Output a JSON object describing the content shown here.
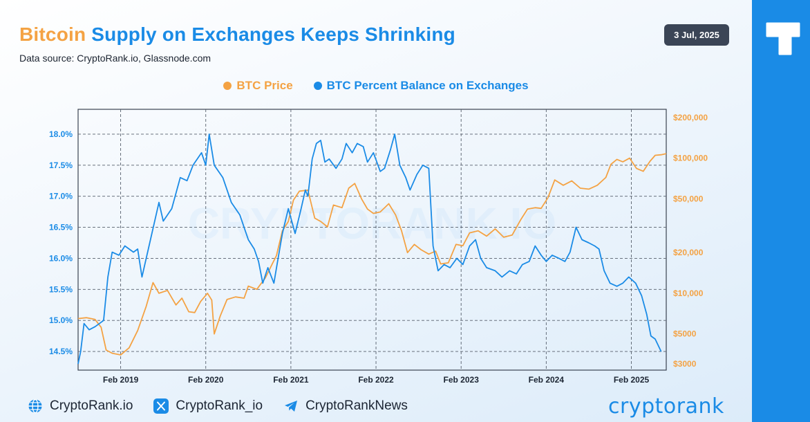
{
  "header": {
    "title_accent": "Bitcoin",
    "title_rest": "Supply on Exchanges Keeps Shrinking",
    "subtitle": "Data source: CryptoRank.io, Glassnode.com",
    "date": "3 Jul, 2025"
  },
  "colors": {
    "price": "#f4a243",
    "balance": "#1a8be6",
    "grid": "#555e6b",
    "badge": "#3b4556"
  },
  "watermark": "CRYPTORANK.IO",
  "chart_data": {
    "type": "line",
    "title": "Bitcoin Supply on Exchanges Keeps Shrinking",
    "x_ticks": [
      "Feb 2019",
      "Feb 2020",
      "Feb 2021",
      "Feb 2022",
      "Feb 2023",
      "Feb 2024",
      "Feb 2025"
    ],
    "x_range": [
      2018.6,
      2025.51
    ],
    "y_left": {
      "label": "BTC Percent Balance on Exchanges",
      "range": [
        14.2,
        18.4
      ],
      "ticks": [
        14.5,
        15.0,
        15.5,
        16.0,
        16.5,
        17.0,
        17.5,
        18.0
      ],
      "tick_labels": [
        "14.5%",
        "15.0%",
        "15.5%",
        "16.0%",
        "16.5%",
        "17.0%",
        "17.5%",
        "18.0%"
      ]
    },
    "y_right": {
      "label": "BTC Price",
      "scale": "log",
      "range": [
        2700,
        230000
      ],
      "ticks": [
        3000,
        5000,
        10000,
        20000,
        50000,
        100000,
        200000
      ],
      "tick_labels": [
        "$3000",
        "$5000",
        "$10,000",
        "$20,000",
        "$50,000",
        "$100,000",
        "$200,000"
      ]
    },
    "legend": "top-center",
    "series": [
      {
        "name": "BTC Price",
        "axis": "right",
        "points": [
          [
            2018.6,
            6500
          ],
          [
            2018.7,
            6600
          ],
          [
            2018.8,
            6400
          ],
          [
            2018.87,
            5600
          ],
          [
            2018.93,
            3800
          ],
          [
            2019.0,
            3600
          ],
          [
            2019.1,
            3500
          ],
          [
            2019.2,
            3950
          ],
          [
            2019.3,
            5300
          ],
          [
            2019.4,
            8000
          ],
          [
            2019.48,
            12000
          ],
          [
            2019.55,
            10000
          ],
          [
            2019.65,
            10500
          ],
          [
            2019.75,
            8200
          ],
          [
            2019.82,
            9200
          ],
          [
            2019.9,
            7300
          ],
          [
            2019.97,
            7200
          ],
          [
            2020.04,
            8700
          ],
          [
            2020.12,
            10000
          ],
          [
            2020.17,
            8900
          ],
          [
            2020.2,
            5000
          ],
          [
            2020.27,
            6800
          ],
          [
            2020.35,
            9000
          ],
          [
            2020.45,
            9400
          ],
          [
            2020.55,
            9200
          ],
          [
            2020.6,
            11300
          ],
          [
            2020.7,
            10700
          ],
          [
            2020.8,
            13000
          ],
          [
            2020.87,
            16000
          ],
          [
            2020.93,
            19000
          ],
          [
            2021.0,
            29000
          ],
          [
            2021.07,
            34000
          ],
          [
            2021.13,
            49000
          ],
          [
            2021.2,
            57000
          ],
          [
            2021.3,
            58000
          ],
          [
            2021.38,
            36000
          ],
          [
            2021.45,
            34000
          ],
          [
            2021.53,
            31000
          ],
          [
            2021.6,
            45000
          ],
          [
            2021.7,
            43000
          ],
          [
            2021.78,
            60000
          ],
          [
            2021.85,
            65000
          ],
          [
            2021.93,
            50000
          ],
          [
            2022.0,
            42000
          ],
          [
            2022.07,
            39000
          ],
          [
            2022.15,
            40000
          ],
          [
            2022.25,
            46000
          ],
          [
            2022.33,
            38000
          ],
          [
            2022.4,
            29000
          ],
          [
            2022.47,
            20000
          ],
          [
            2022.55,
            23000
          ],
          [
            2022.63,
            21000
          ],
          [
            2022.72,
            19500
          ],
          [
            2022.8,
            20500
          ],
          [
            2022.86,
            16500
          ],
          [
            2022.95,
            16800
          ],
          [
            2023.04,
            23000
          ],
          [
            2023.12,
            22500
          ],
          [
            2023.2,
            28000
          ],
          [
            2023.3,
            29000
          ],
          [
            2023.4,
            26500
          ],
          [
            2023.5,
            30000
          ],
          [
            2023.6,
            26000
          ],
          [
            2023.7,
            27000
          ],
          [
            2023.8,
            35000
          ],
          [
            2023.88,
            42000
          ],
          [
            2023.97,
            43000
          ],
          [
            2024.04,
            42500
          ],
          [
            2024.12,
            51000
          ],
          [
            2024.2,
            69000
          ],
          [
            2024.3,
            63000
          ],
          [
            2024.4,
            68000
          ],
          [
            2024.5,
            60000
          ],
          [
            2024.6,
            59000
          ],
          [
            2024.7,
            63000
          ],
          [
            2024.8,
            72000
          ],
          [
            2024.86,
            90000
          ],
          [
            2024.93,
            98000
          ],
          [
            2025.0,
            94000
          ],
          [
            2025.08,
            100000
          ],
          [
            2025.16,
            84000
          ],
          [
            2025.24,
            80000
          ],
          [
            2025.32,
            95000
          ],
          [
            2025.38,
            105000
          ],
          [
            2025.45,
            106000
          ],
          [
            2025.51,
            108000
          ]
        ]
      },
      {
        "name": "BTC Percent Balance on Exchanges",
        "axis": "left",
        "points": [
          [
            2018.6,
            14.3
          ],
          [
            2018.63,
            14.5
          ],
          [
            2018.67,
            14.95
          ],
          [
            2018.73,
            14.85
          ],
          [
            2018.8,
            14.9
          ],
          [
            2018.85,
            14.95
          ],
          [
            2018.9,
            15.0
          ],
          [
            2018.95,
            15.7
          ],
          [
            2019.0,
            16.1
          ],
          [
            2019.08,
            16.05
          ],
          [
            2019.15,
            16.2
          ],
          [
            2019.25,
            16.1
          ],
          [
            2019.3,
            16.15
          ],
          [
            2019.35,
            15.7
          ],
          [
            2019.45,
            16.3
          ],
          [
            2019.55,
            16.9
          ],
          [
            2019.6,
            16.6
          ],
          [
            2019.7,
            16.8
          ],
          [
            2019.8,
            17.3
          ],
          [
            2019.88,
            17.25
          ],
          [
            2019.95,
            17.5
          ],
          [
            2020.05,
            17.7
          ],
          [
            2020.1,
            17.5
          ],
          [
            2020.14,
            18.0
          ],
          [
            2020.2,
            17.5
          ],
          [
            2020.3,
            17.3
          ],
          [
            2020.4,
            16.9
          ],
          [
            2020.5,
            16.7
          ],
          [
            2020.6,
            16.3
          ],
          [
            2020.67,
            16.15
          ],
          [
            2020.72,
            15.95
          ],
          [
            2020.77,
            15.6
          ],
          [
            2020.83,
            15.85
          ],
          [
            2020.9,
            15.6
          ],
          [
            2020.95,
            16.0
          ],
          [
            2021.0,
            16.4
          ],
          [
            2021.07,
            16.8
          ],
          [
            2021.15,
            16.4
          ],
          [
            2021.22,
            16.8
          ],
          [
            2021.27,
            17.1
          ],
          [
            2021.3,
            17.0
          ],
          [
            2021.35,
            17.6
          ],
          [
            2021.4,
            17.85
          ],
          [
            2021.45,
            17.9
          ],
          [
            2021.5,
            17.55
          ],
          [
            2021.55,
            17.6
          ],
          [
            2021.63,
            17.45
          ],
          [
            2021.7,
            17.6
          ],
          [
            2021.75,
            17.85
          ],
          [
            2021.82,
            17.7
          ],
          [
            2021.88,
            17.85
          ],
          [
            2021.95,
            17.8
          ],
          [
            2022.0,
            17.55
          ],
          [
            2022.07,
            17.7
          ],
          [
            2022.15,
            17.4
          ],
          [
            2022.2,
            17.45
          ],
          [
            2022.27,
            17.75
          ],
          [
            2022.32,
            18.0
          ],
          [
            2022.38,
            17.5
          ],
          [
            2022.45,
            17.3
          ],
          [
            2022.5,
            17.1
          ],
          [
            2022.58,
            17.35
          ],
          [
            2022.65,
            17.5
          ],
          [
            2022.72,
            17.45
          ],
          [
            2022.77,
            16.2
          ],
          [
            2022.83,
            15.8
          ],
          [
            2022.9,
            15.9
          ],
          [
            2022.97,
            15.85
          ],
          [
            2023.05,
            16.0
          ],
          [
            2023.12,
            15.9
          ],
          [
            2023.2,
            16.2
          ],
          [
            2023.27,
            16.3
          ],
          [
            2023.33,
            16.0
          ],
          [
            2023.4,
            15.85
          ],
          [
            2023.5,
            15.8
          ],
          [
            2023.58,
            15.7
          ],
          [
            2023.67,
            15.8
          ],
          [
            2023.75,
            15.75
          ],
          [
            2023.82,
            15.9
          ],
          [
            2023.9,
            15.95
          ],
          [
            2023.97,
            16.2
          ],
          [
            2024.04,
            16.05
          ],
          [
            2024.1,
            15.95
          ],
          [
            2024.17,
            16.05
          ],
          [
            2024.25,
            16.0
          ],
          [
            2024.32,
            15.95
          ],
          [
            2024.38,
            16.1
          ],
          [
            2024.45,
            16.5
          ],
          [
            2024.52,
            16.3
          ],
          [
            2024.6,
            16.25
          ],
          [
            2024.67,
            16.2
          ],
          [
            2024.72,
            16.15
          ],
          [
            2024.78,
            15.8
          ],
          [
            2024.85,
            15.6
          ],
          [
            2024.93,
            15.55
          ],
          [
            2025.0,
            15.6
          ],
          [
            2025.07,
            15.7
          ],
          [
            2025.15,
            15.6
          ],
          [
            2025.22,
            15.4
          ],
          [
            2025.28,
            15.1
          ],
          [
            2025.33,
            14.75
          ],
          [
            2025.38,
            14.7
          ],
          [
            2025.45,
            14.5
          ]
        ]
      }
    ]
  },
  "footer": {
    "website": "CryptoRank.io",
    "twitter": "CryptoRank_io",
    "telegram": "CryptoRankNews",
    "brand": "cryptorank"
  }
}
